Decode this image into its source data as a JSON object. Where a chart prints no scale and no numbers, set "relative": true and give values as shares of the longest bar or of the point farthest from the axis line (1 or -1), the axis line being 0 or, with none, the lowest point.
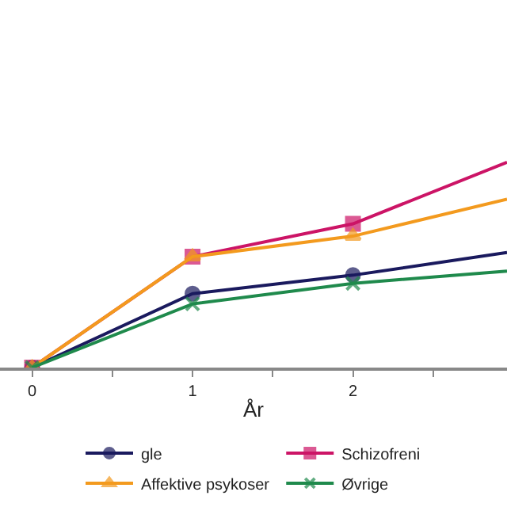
{
  "chart_data": {
    "type": "line",
    "relative": true,
    "xlabel": "År",
    "x": [
      0,
      1,
      2,
      2.96
    ],
    "xlim": [
      -0.2,
      2.96
    ],
    "xticks": [
      0,
      {
        "value": 0.5,
        "label": null
      },
      1,
      {
        "value": 1.5,
        "label": null
      },
      2,
      {
        "value": 2.5,
        "label": null
      }
    ],
    "series": [
      {
        "name": "gle",
        "color": "#1a1a5e",
        "marker": "circle",
        "values": [
          0,
          0.36,
          0.45,
          0.56
        ]
      },
      {
        "name": "Schizofreni",
        "color": "#cc1466",
        "marker": "square",
        "values": [
          0,
          0.54,
          0.7,
          1
        ]
      },
      {
        "name": "Affektive psykoser",
        "color": "#f39a1e",
        "marker": "triangle",
        "values": [
          0,
          0.54,
          0.64,
          0.82
        ]
      },
      {
        "name": "Øvrige",
        "color": "#1f8a4c",
        "marker": "cross",
        "values": [
          0,
          0.31,
          0.41,
          0.47
        ]
      }
    ],
    "legend": "bottom",
    "line_style": "solid",
    "tick_labels": "x"
  }
}
